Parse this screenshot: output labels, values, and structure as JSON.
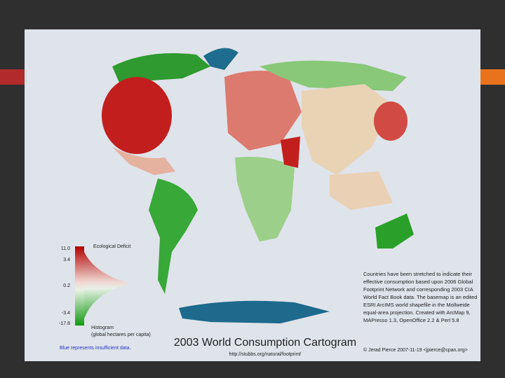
{
  "map": {
    "title": "2003 World Consumption Cartogram",
    "url": "http://stubbs.org/natural/footprint/",
    "legend": {
      "heading": "Ecological Deficit",
      "ticks": [
        "11.0",
        "3.4",
        "0.2",
        "-3.4",
        "-17.8"
      ],
      "histogram_label": [
        "Histogram",
        "(global hectares per capita)"
      ],
      "note": "Blue represents insufficient data."
    },
    "description": [
      "Countries have been stretched to indicate their",
      "effective consumption based upon 2006 Global",
      "Footprint Network and corresponding 2003 CIA",
      "World Fact Book data. The basemap is an edited",
      "ESRI ArcIMS world shapefile in the Mollweide",
      "equal-area projection.  Created with ArcMap 9,",
      "MAPresso 1.3, OpenOffice 2.2 & Perl 5.8"
    ],
    "credit": "© Jerad Pierce 2007-11-19 <jpierce@cpan.org>"
  }
}
